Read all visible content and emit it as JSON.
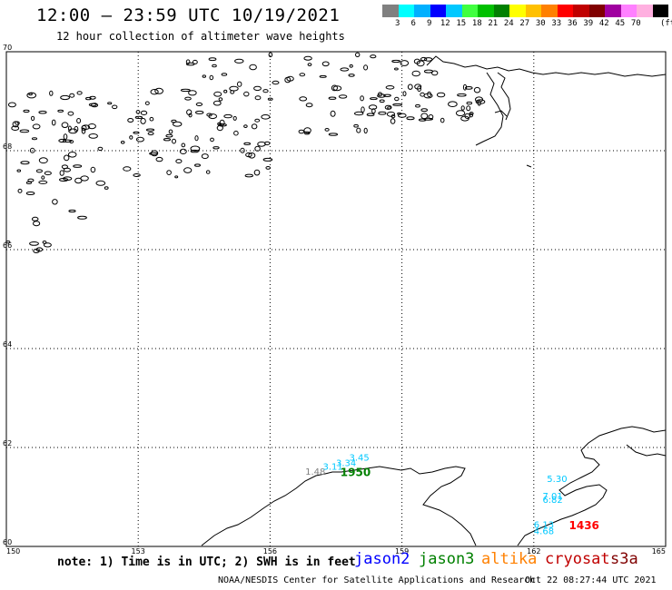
{
  "header": {
    "title": "12:00 – 23:59 UTC 10/19/2021",
    "subtitle": "12 hour collection of altimeter wave heights"
  },
  "legend": {
    "colors": [
      "#808080",
      "#00ffff",
      "#00b0ff",
      "#0000ff",
      "#00c8ff",
      "#40ff40",
      "#00c000",
      "#008000",
      "#ffff00",
      "#ffc000",
      "#ff8000",
      "#ff0000",
      "#c00000",
      "#800000",
      "#a000a0",
      "#ff80ff",
      "#ffb0e0",
      "#000000"
    ],
    "labels": [
      "3",
      "6",
      "9",
      "12",
      "15",
      "18",
      "21",
      "24",
      "27",
      "30",
      "33",
      "36",
      "39",
      "42",
      "45",
      "70"
    ],
    "unit": "(ft)"
  },
  "map": {
    "lon_min": 150,
    "lon_max": 165,
    "lat_min": 60,
    "lat_max": 70,
    "lon_ticks": [
      "150",
      "153",
      "156",
      "159",
      "162",
      "165"
    ],
    "lat_ticks": [
      "60",
      "62",
      "64",
      "66",
      "68",
      "70"
    ],
    "observations": [
      {
        "lon": 156.8,
        "lat": 61.45,
        "label": "1.48",
        "color": "#808080"
      },
      {
        "lon": 157.2,
        "lat": 61.55,
        "label": "3.11",
        "color": "#00c8ff"
      },
      {
        "lon": 157.5,
        "lat": 61.62,
        "label": "3.34",
        "color": "#00c8ff"
      },
      {
        "lon": 157.8,
        "lat": 61.73,
        "label": "3.45",
        "color": "#00c8ff"
      },
      {
        "lon": 157.6,
        "lat": 61.42,
        "label": "1950",
        "color": "#008000",
        "big": true
      },
      {
        "lon": 162.3,
        "lat": 61.3,
        "label": "5.30",
        "color": "#00c8ff"
      },
      {
        "lon": 162.2,
        "lat": 60.95,
        "label": "7.01",
        "color": "#00c8ff"
      },
      {
        "lon": 162.2,
        "lat": 60.88,
        "label": "6.82",
        "color": "#00c8ff"
      },
      {
        "lon": 162.0,
        "lat": 60.38,
        "label": "6.13",
        "color": "#00c8ff"
      },
      {
        "lon": 162.0,
        "lat": 60.25,
        "label": "4.68",
        "color": "#00c8ff"
      },
      {
        "lon": 162.8,
        "lat": 60.35,
        "label": "1436",
        "color": "#ff0000",
        "big": true
      }
    ]
  },
  "footer": {
    "note": "note: 1) Time is in UTC; 2) SWH is in feet",
    "satellites": [
      {
        "name": "jason2",
        "color": "#0000ff"
      },
      {
        "name": "jason3",
        "color": "#008000"
      },
      {
        "name": "altika",
        "color": "#ff8000"
      },
      {
        "name": "cryosat",
        "color": "#c00000"
      },
      {
        "name": "s3a",
        "color": "#800000"
      }
    ],
    "credit": "NOAA/NESDIS Center for Satellite Applications and Research",
    "timestamp": "Oct 22 08:27:44 UTC 2021"
  }
}
